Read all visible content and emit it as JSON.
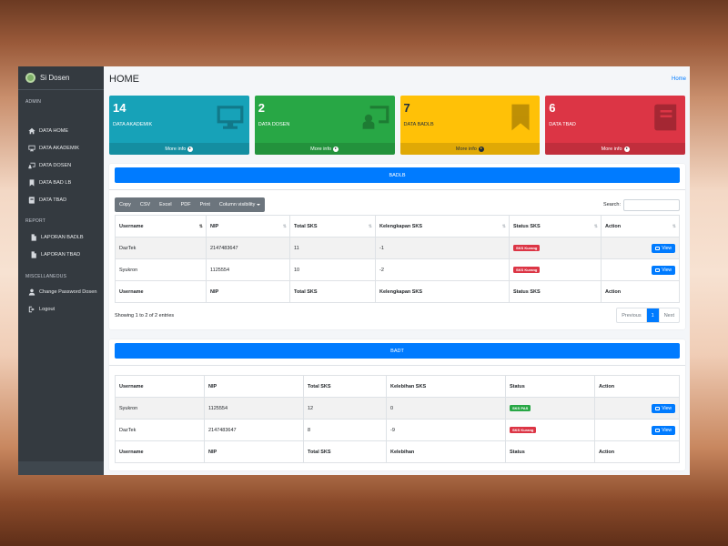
{
  "brand": {
    "title": "Si Dosen"
  },
  "sidebar": {
    "admin_header": "ADMIN",
    "admin_items": [
      {
        "label": "DATA HOME",
        "icon": "home-icon"
      },
      {
        "label": "DATA AKADEMIK",
        "icon": "monitor-icon"
      },
      {
        "label": "DATA DOSEN",
        "icon": "chalkboard-teacher-icon"
      },
      {
        "label": "DATA BAD LB",
        "icon": "bookmark-icon"
      },
      {
        "label": "DATA TBAD",
        "icon": "book-icon"
      }
    ],
    "report_header": "REPORT",
    "report_items": [
      {
        "label": "LAPORAN BADLB",
        "icon": "file-icon"
      },
      {
        "label": "LAPORAN TBAD",
        "icon": "file-icon"
      }
    ],
    "misc_header": "MISCELLANEOUS",
    "misc_items": [
      {
        "label": "Change Password Dosen",
        "icon": "user-icon"
      },
      {
        "label": "Logout",
        "icon": "sign-out-icon"
      }
    ]
  },
  "header": {
    "title": "HOME",
    "breadcrumb": "Home"
  },
  "cards": [
    {
      "count": "14",
      "label": "DATA AKADEMIK",
      "more": "More info",
      "color": "#17a2b8"
    },
    {
      "count": "2",
      "label": "DATA DOSEN",
      "more": "More info",
      "color": "#28a745"
    },
    {
      "count": "7",
      "label": "DATA BADLB",
      "more": "More info",
      "color": "#ffc107"
    },
    {
      "count": "6",
      "label": "DATA TBAD",
      "more": "More info",
      "color": "#dc3545"
    }
  ],
  "badlb": {
    "title": "BADLB",
    "buttons": [
      "Copy",
      "CSV",
      "Excel",
      "PDF",
      "Print",
      "Column visibility"
    ],
    "search_label": "Search:",
    "columns": [
      "Username",
      "NIP",
      "Total SKS",
      "Kelengkapan SKS",
      "Status SKS",
      "Action"
    ],
    "rows": [
      {
        "username": "DazTek",
        "nip": "2147483647",
        "total": "11",
        "kelengkapan": "-1",
        "status": "SKS Kurang",
        "action": "View"
      },
      {
        "username": "Syukron",
        "nip": "1125554",
        "total": "10",
        "kelengkapan": "-2",
        "status": "SKS Kurang",
        "action": "View"
      }
    ],
    "footer": [
      "Username",
      "NIP",
      "Total SKS",
      "Kelengkapan SKS",
      "Status SKS",
      "Action"
    ],
    "info": "Showing 1 to 2 of 2 entries",
    "pager": {
      "prev": "Previous",
      "page": "1",
      "next": "Next"
    }
  },
  "badt": {
    "title": "BADT",
    "columns": [
      "Username",
      "NIP",
      "Total SKS",
      "Kelebihan SKS",
      "Status",
      "Action"
    ],
    "rows": [
      {
        "username": "Syukron",
        "nip": "1125554",
        "total": "12",
        "kelebihan": "0",
        "status": "SKS PAS",
        "action": "View"
      },
      {
        "username": "DazTek",
        "nip": "2147483647",
        "total": "8",
        "kelebihan": "-9",
        "status": "SKS Kurang",
        "action": "View"
      }
    ],
    "footer": [
      "Username",
      "NIP",
      "Total SKS",
      "Kelebihan",
      "Status",
      "Action"
    ]
  }
}
